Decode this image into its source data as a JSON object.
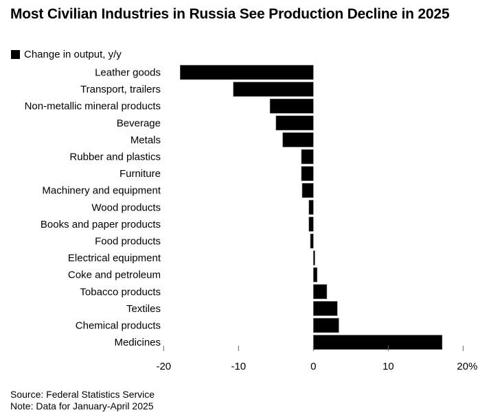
{
  "chart_data": {
    "type": "bar",
    "orientation": "horizontal",
    "title": "Most Civilian Industries in Russia See Production Decline in 2025",
    "legend": [
      {
        "name": "Change in output, y/y",
        "color": "#000000"
      }
    ],
    "legend_placement": "top-left",
    "categories": [
      "Leather goods",
      "Transport, trailers",
      "Non-metallic mineral products",
      "Beverage",
      "Metals",
      "Rubber and plastics",
      "Furniture",
      "Machinery and equipment",
      "Wood products",
      "Books and paper products",
      "Food products",
      "Electrical equipment",
      "Coke and petroleum",
      "Tobacco products",
      "Textiles",
      "Chemical products",
      "Medicines"
    ],
    "series": [
      {
        "name": "Change in output, y/y",
        "values": [
          -17.8,
          -10.7,
          -5.8,
          -5.0,
          -4.1,
          -1.6,
          -1.6,
          -1.5,
          -0.6,
          -0.6,
          -0.4,
          0.2,
          0.5,
          1.8,
          3.2,
          3.4,
          17.2
        ]
      }
    ],
    "xlim": [
      -20,
      20
    ],
    "xticks": [
      -20,
      -10,
      0,
      10,
      20
    ],
    "xtick_labels": [
      "-20",
      "-10",
      "0",
      "10",
      "20%"
    ],
    "grid": false,
    "bar_color": "#000000"
  },
  "footer": {
    "source": "Source: Federal Statistics Service",
    "note": "Note: Data for January-April 2025"
  }
}
